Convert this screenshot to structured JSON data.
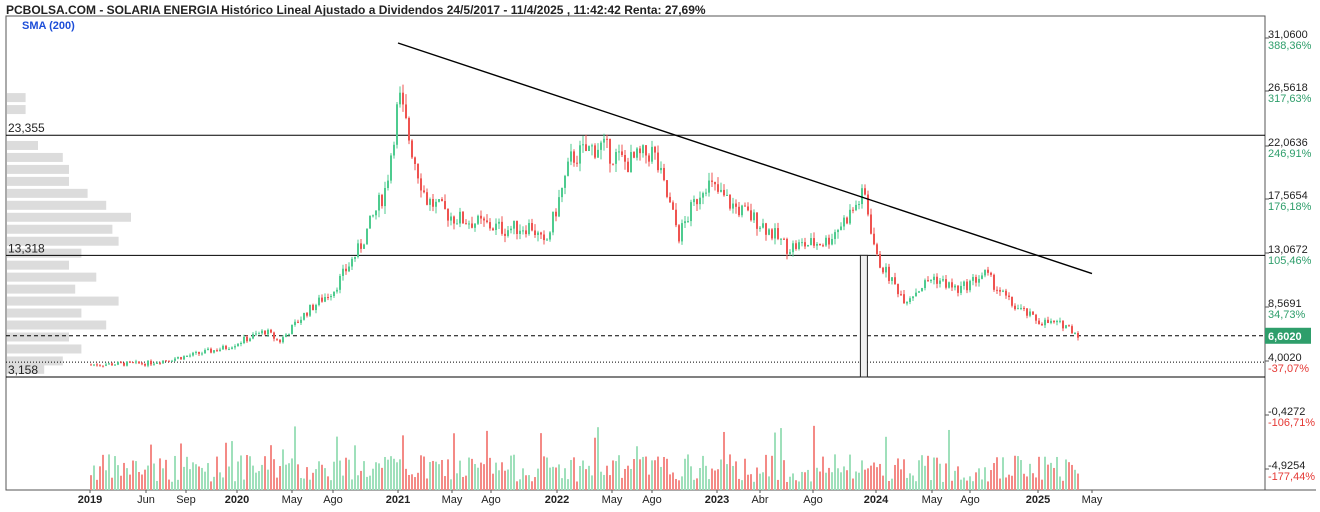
{
  "header": {
    "title": "PCBOLSA.COM - SOLARIA ENERGIA Histórico Lineal Ajustado a Dividendos 24/5/2017 - 11/4/2025 , 11:42:42 Renta: 27,69%",
    "indicator": "SMA (200)"
  },
  "colors": {
    "up": "#4ecb8f",
    "down": "#ef5350",
    "volume_up": "#9fe0bb",
    "volume_down": "#f48a86",
    "profile_bar": "#dcdcdc",
    "trendline": "#000000",
    "last_price_badge": "#2e9e6b",
    "pct_positive": "#2e9e6b",
    "pct_negative": "#e53935",
    "sma_label": "#1d4ed8"
  },
  "chart_data": {
    "type": "candlestick",
    "title": "PCBOLSA.COM - SOLARIA ENERGIA Histórico Lineal Ajustado a Dividendos 24/5/2017 - 11/4/2025 , 11:42:42 Renta: 27,69%",
    "legend": [
      "SMA (200)"
    ],
    "y_axis": {
      "ticks": [
        {
          "value": 31.06,
          "label": "31,0600",
          "pct": "388,36%"
        },
        {
          "value": 26.5618,
          "label": "26,5618",
          "pct": "317,63%"
        },
        {
          "value": 22.0636,
          "label": "22,0636",
          "pct": "246,91%"
        },
        {
          "value": 17.5654,
          "label": "17,5654",
          "pct": "176,18%"
        },
        {
          "value": 13.0672,
          "label": "13,0672",
          "pct": "105,46%"
        },
        {
          "value": 8.5691,
          "label": "8,5691",
          "pct": "34,73%"
        },
        {
          "value": 4.002,
          "label": "4,0020",
          "pct": "-37,07%"
        },
        {
          "value": -0.4272,
          "label": "-0,4272",
          "pct": "-106,71%"
        },
        {
          "value": -4.9254,
          "label": "-4,9254",
          "pct": "-177,44%"
        }
      ]
    },
    "x_axis": {
      "ticks": [
        {
          "label": "2019",
          "bold": true,
          "date": "2019-01"
        },
        {
          "label": "Jun",
          "bold": false,
          "date": "2019-06"
        },
        {
          "label": "Sep",
          "bold": false,
          "date": "2019-09"
        },
        {
          "label": "2020",
          "bold": true,
          "date": "2020-01"
        },
        {
          "label": "May",
          "bold": false,
          "date": "2020-05"
        },
        {
          "label": "Ago",
          "bold": false,
          "date": "2020-08"
        },
        {
          "label": "2021",
          "bold": true,
          "date": "2021-01"
        },
        {
          "label": "May",
          "bold": false,
          "date": "2021-05"
        },
        {
          "label": "Ago",
          "bold": false,
          "date": "2021-08"
        },
        {
          "label": "2022",
          "bold": true,
          "date": "2022-01"
        },
        {
          "label": "May",
          "bold": false,
          "date": "2022-05"
        },
        {
          "label": "Ago",
          "bold": false,
          "date": "2022-08"
        },
        {
          "label": "2023",
          "bold": true,
          "date": "2023-01"
        },
        {
          "label": "Abr",
          "bold": false,
          "date": "2023-04"
        },
        {
          "label": "Ago",
          "bold": false,
          "date": "2023-08"
        },
        {
          "label": "2024",
          "bold": true,
          "date": "2024-01"
        },
        {
          "label": "May",
          "bold": false,
          "date": "2024-05"
        },
        {
          "label": "Ago",
          "bold": false,
          "date": "2024-08"
        },
        {
          "label": "2025",
          "bold": true,
          "date": "2025-01"
        },
        {
          "label": "May",
          "bold": false,
          "date": "2025-05"
        }
      ]
    },
    "levels": [
      {
        "value": 23.355,
        "label": "23,355"
      },
      {
        "value": 13.318,
        "label": "13,318"
      },
      {
        "value": 3.158,
        "label": "3,158"
      }
    ],
    "last_price": {
      "value": 6.602,
      "label": "6,6020"
    },
    "dotted_level": 4.4,
    "trendline": [
      {
        "date": "2021-01",
        "value": 31.06
      },
      {
        "date": "2025-05",
        "value": 11.8
      }
    ],
    "gap_box": {
      "date": "2023-12",
      "high": 13.318,
      "low": 3.158
    },
    "price_path": [
      [
        "2019-01",
        4.2
      ],
      [
        "2019-06",
        4.3
      ],
      [
        "2019-09",
        4.9
      ],
      [
        "2019-12",
        5.6
      ],
      [
        "2020-03",
        7.0
      ],
      [
        "2020-04",
        6.1
      ],
      [
        "2020-06",
        8.6
      ],
      [
        "2020-08",
        10.5
      ],
      [
        "2020-10",
        14.0
      ],
      [
        "2020-12",
        19.0
      ],
      [
        "2021-01",
        26.5
      ],
      [
        "2021-02",
        22.0
      ],
      [
        "2021-03",
        18.0
      ],
      [
        "2021-05",
        16.5
      ],
      [
        "2021-07",
        16.0
      ],
      [
        "2021-09",
        15.5
      ],
      [
        "2021-11",
        15.8
      ],
      [
        "2021-12",
        14.0
      ],
      [
        "2022-02",
        21.5
      ],
      [
        "2022-04",
        22.5
      ],
      [
        "2022-06",
        21.0
      ],
      [
        "2022-08",
        22.0
      ],
      [
        "2022-10",
        15.0
      ],
      [
        "2022-12",
        19.5
      ],
      [
        "2023-02",
        17.5
      ],
      [
        "2023-04",
        16.0
      ],
      [
        "2023-06",
        14.0
      ],
      [
        "2023-09",
        14.5
      ],
      [
        "2023-11",
        17.0
      ],
      [
        "2023-12",
        18.5
      ],
      [
        "2024-01",
        13.0
      ],
      [
        "2024-03",
        9.6
      ],
      [
        "2024-05",
        11.5
      ],
      [
        "2024-07",
        10.4
      ],
      [
        "2024-09",
        11.8
      ],
      [
        "2024-11",
        9.2
      ],
      [
        "2025-01",
        7.8
      ],
      [
        "2025-03",
        7.5
      ],
      [
        "2025-04",
        6.6
      ]
    ],
    "volume_profile": [
      {
        "price": 26.5,
        "size": 0.15
      },
      {
        "price": 25.5,
        "size": 0.15
      },
      {
        "price": 22.5,
        "size": 0.25
      },
      {
        "price": 21.5,
        "size": 0.45
      },
      {
        "price": 20.5,
        "size": 0.5
      },
      {
        "price": 19.5,
        "size": 0.5
      },
      {
        "price": 18.5,
        "size": 0.65
      },
      {
        "price": 17.5,
        "size": 0.8
      },
      {
        "price": 16.5,
        "size": 1.0
      },
      {
        "price": 15.5,
        "size": 0.85
      },
      {
        "price": 14.5,
        "size": 0.9
      },
      {
        "price": 13.5,
        "size": 0.6
      },
      {
        "price": 12.5,
        "size": 0.5
      },
      {
        "price": 11.5,
        "size": 0.72
      },
      {
        "price": 10.5,
        "size": 0.55
      },
      {
        "price": 9.5,
        "size": 0.9
      },
      {
        "price": 8.5,
        "size": 0.6
      },
      {
        "price": 7.5,
        "size": 0.8
      },
      {
        "price": 6.5,
        "size": 0.5
      },
      {
        "price": 5.5,
        "size": 0.6
      },
      {
        "price": 4.5,
        "size": 0.45
      },
      {
        "price": 3.8,
        "size": 0.3
      }
    ]
  }
}
